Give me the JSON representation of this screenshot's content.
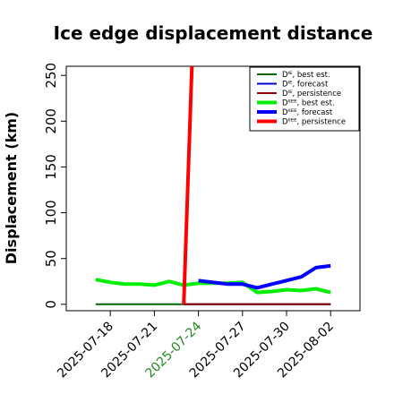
{
  "chart_data": {
    "type": "line",
    "title": "Ice edge displacement distance",
    "ylabel": "Displacement (km)",
    "xlabel": "",
    "ylim": [
      -7,
      260
    ],
    "xlim": [
      "2025-07-15",
      "2025-08-04"
    ],
    "y_ticks": [
      0,
      50,
      100,
      150,
      200,
      250
    ],
    "x_ticks": [
      {
        "date": "2025-07-18",
        "color": "#000000"
      },
      {
        "date": "2025-07-21",
        "color": "#000000"
      },
      {
        "date": "2025-07-24",
        "color": "#228B22"
      },
      {
        "date": "2025-07-27",
        "color": "#000000"
      },
      {
        "date": "2025-07-30",
        "color": "#000000"
      },
      {
        "date": "2025-08-02",
        "color": "#000000"
      }
    ],
    "legend_position": "top-right",
    "series": [
      {
        "name": "Dᴵᴱ, best est.",
        "color": "#006400",
        "width": 2,
        "points": [
          [
            "2025-07-17",
            0
          ],
          [
            "2025-08-02",
            0
          ]
        ]
      },
      {
        "name": "Dᴵᴱ, forecast",
        "color": "#0000CD",
        "width": 2,
        "points": [
          [
            "2025-07-23",
            0
          ],
          [
            "2025-08-02",
            0
          ]
        ]
      },
      {
        "name": "Dᴵᴱ, persistence",
        "color": "#8B0000",
        "width": 2,
        "points": [
          [
            "2025-07-23",
            0
          ],
          [
            "2025-08-02",
            0
          ]
        ]
      },
      {
        "name": "Dᴵᴵᴱᴱ, best est.",
        "color": "#00EE00",
        "width": 4,
        "points": [
          [
            "2025-07-17",
            27
          ],
          [
            "2025-07-18",
            24
          ],
          [
            "2025-07-19",
            22
          ],
          [
            "2025-07-20",
            22
          ],
          [
            "2025-07-21",
            21
          ],
          [
            "2025-07-22",
            25
          ],
          [
            "2025-07-23",
            21
          ],
          [
            "2025-07-24",
            23
          ],
          [
            "2025-07-25",
            23
          ],
          [
            "2025-07-26",
            23
          ],
          [
            "2025-07-27",
            24
          ],
          [
            "2025-07-28",
            13
          ],
          [
            "2025-07-29",
            14
          ],
          [
            "2025-07-30",
            16
          ],
          [
            "2025-07-31",
            15
          ],
          [
            "2025-08-01",
            17
          ],
          [
            "2025-08-02",
            13
          ]
        ]
      },
      {
        "name": "Dᴵᴵᴱᴱ, forecast",
        "color": "#0000FF",
        "width": 4,
        "points": [
          [
            "2025-07-24",
            26
          ],
          [
            "2025-07-25",
            24
          ],
          [
            "2025-07-26",
            22
          ],
          [
            "2025-07-27",
            22
          ],
          [
            "2025-07-28",
            18
          ],
          [
            "2025-07-29",
            22
          ],
          [
            "2025-07-30",
            26
          ],
          [
            "2025-07-31",
            30
          ],
          [
            "2025-08-01",
            40
          ],
          [
            "2025-08-02",
            42
          ]
        ]
      },
      {
        "name": "Dᴵᴵᴱᴱ, persistence",
        "color": "#FF0000",
        "width": 4,
        "points": [
          [
            "2025-07-23",
            0
          ],
          [
            "2025-07-23.6",
            280
          ]
        ]
      }
    ]
  }
}
